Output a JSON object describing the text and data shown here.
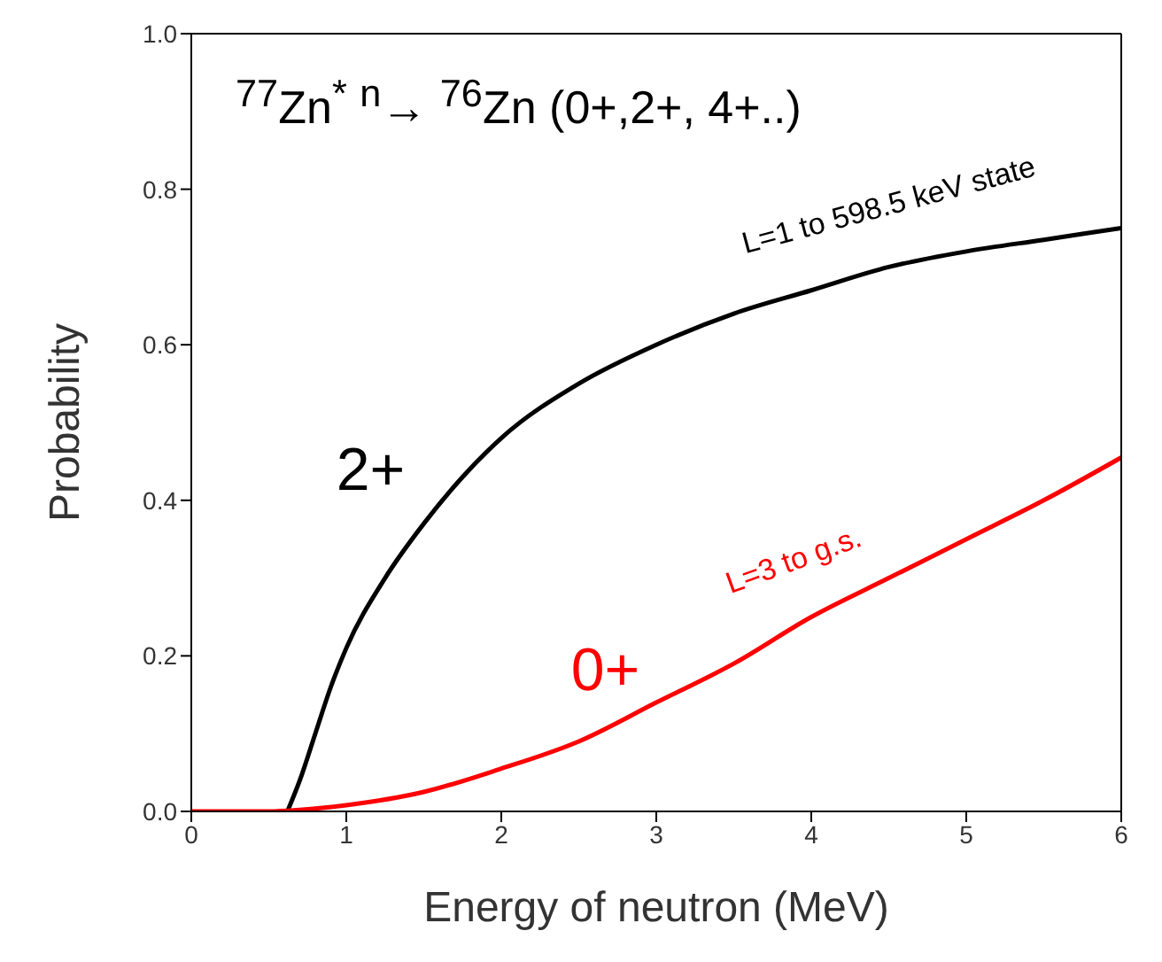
{
  "chart_data": {
    "type": "line",
    "title": "$^{77}$Zn$^{*}$ $^{n}$→ $^{76}$Zn (0+,2+, 4+..)",
    "xlabel": "Energy of neutron (MeV)",
    "ylabel": "Probability",
    "xlim": [
      0,
      6
    ],
    "xticks": [
      0,
      1,
      2,
      3,
      4,
      5,
      6
    ],
    "ylim": [
      0,
      1
    ],
    "yticks": [
      {
        "value": 0,
        "label": "0.0"
      },
      {
        "value": 0.2,
        "label": "0.2"
      },
      {
        "value": 0.4,
        "label": "0.4"
      },
      {
        "value": 0.6,
        "label": "0.6"
      },
      {
        "value": 0.8,
        "label": "0.8"
      },
      {
        "value": 1,
        "label": "1.0"
      }
    ],
    "marker": "none",
    "line_style": "solid",
    "series": [
      {
        "name": "2+",
        "color": "#000000",
        "x": [
          0.62,
          0.7,
          0.8,
          0.9,
          1,
          1.25,
          1.5,
          1.75,
          2,
          2.5,
          3,
          3.5,
          4,
          4.5,
          5,
          5.5,
          6
        ],
        "values": [
          0,
          0.04,
          0.1,
          0.16,
          0.21,
          0.3,
          0.37,
          0.43,
          0.48,
          0.55,
          0.6,
          0.64,
          0.67,
          0.7,
          0.72,
          0.735,
          0.75
        ]
      },
      {
        "name": "0+",
        "color": "#ff0000",
        "x": [
          0,
          0.5,
          0.7,
          1,
          1.5,
          2,
          2.5,
          3,
          3.5,
          4,
          4.5,
          5,
          5.5,
          6
        ],
        "values": [
          0,
          0,
          0.002,
          0.008,
          0.025,
          0.055,
          0.09,
          0.14,
          0.19,
          0.25,
          0.3,
          0.35,
          0.4,
          0.455
        ]
      }
    ],
    "annotations": [
      "L=1 to 598.5 keV state",
      "L=3 to g.s."
    ]
  }
}
